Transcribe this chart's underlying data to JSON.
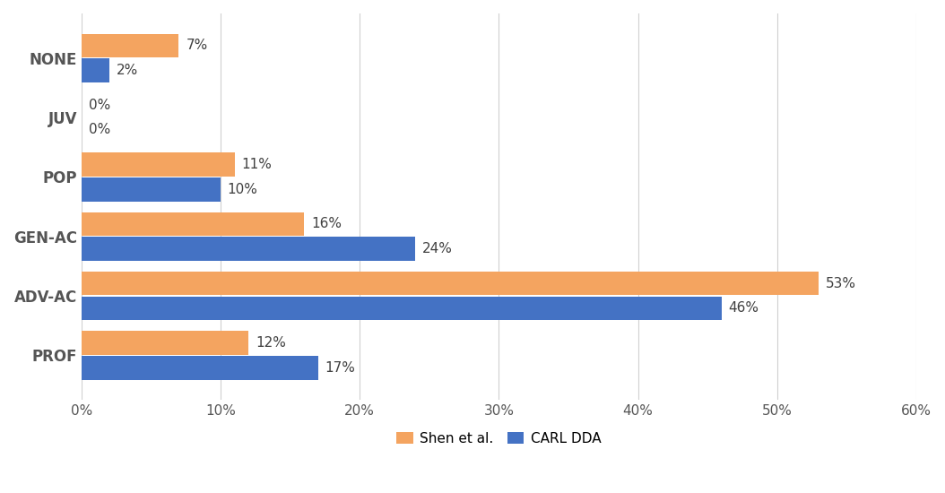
{
  "categories": [
    "NONE",
    "JUV",
    "POP",
    "GEN-AC",
    "ADV-AC",
    "PROF"
  ],
  "shen_values": [
    7,
    0,
    11,
    16,
    53,
    12
  ],
  "carl_values": [
    2,
    0,
    10,
    24,
    46,
    17
  ],
  "shen_color": "#F4A460",
  "carl_color": "#4472C4",
  "bar_height": 0.4,
  "xlim": [
    0,
    60
  ],
  "xticks": [
    0,
    10,
    20,
    30,
    40,
    50,
    60
  ],
  "legend_labels": [
    "Shen et al.",
    "CARL DDA"
  ],
  "background_color": "#FFFFFF",
  "grid_color": "#D0D0D0",
  "label_fontsize": 12,
  "tick_fontsize": 11,
  "annotation_fontsize": 11,
  "annotation_color": "#404040"
}
